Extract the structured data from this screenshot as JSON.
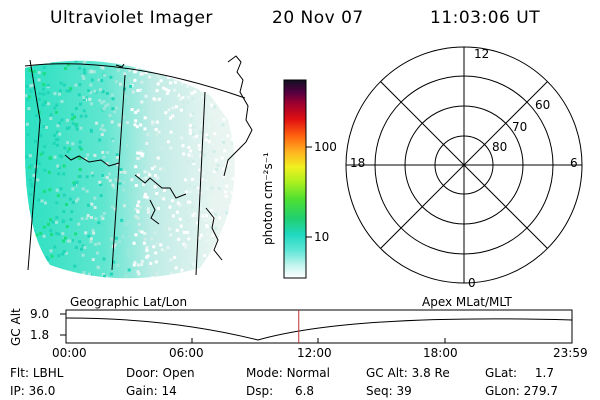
{
  "header": {
    "title": "Ultraviolet Imager",
    "date": "20 Nov 07",
    "time": "11:03:06 UT"
  },
  "colorbar": {
    "unit_label": "photon cm⁻²s⁻¹",
    "ticks": [
      "100",
      "10"
    ]
  },
  "polar": {
    "mlt_labels": {
      "top": "12",
      "left": "18",
      "right": "6",
      "bottom": "0"
    },
    "lat_labels": [
      "60",
      "70",
      "80"
    ]
  },
  "orbit": {
    "left_label": "Geographic Lat/Lon",
    "right_label": "Apex MLat/MLT",
    "axis_label": "GC Alt",
    "y_ticks": [
      "9.0",
      "1.8"
    ],
    "x_ticks": [
      "00:00",
      "06:00",
      "12:00",
      "18:00",
      "23:59"
    ],
    "current_time_fraction": 0.46
  },
  "info": {
    "row1": [
      {
        "key": "Flt:",
        "val": "LBHL"
      },
      {
        "key": "Door:",
        "val": "Open"
      },
      {
        "key": "Mode:",
        "val": "Normal"
      },
      {
        "key": "GC Alt:",
        "val": "3.8 Re"
      },
      {
        "key": "GLat:",
        "val": "1.7"
      }
    ],
    "row2": [
      {
        "key": "IP:",
        "val": "36.0"
      },
      {
        "key": "Gain:",
        "val": "14"
      },
      {
        "key": "Dsp:",
        "val": "6.8"
      },
      {
        "key": "Seq:",
        "val": "39"
      },
      {
        "key": "GLon:",
        "val": "279.7"
      }
    ]
  },
  "colors": {
    "cyan": "#2ee6c8",
    "light_cyan": "#b8f0ea",
    "marker": "#c03030"
  }
}
